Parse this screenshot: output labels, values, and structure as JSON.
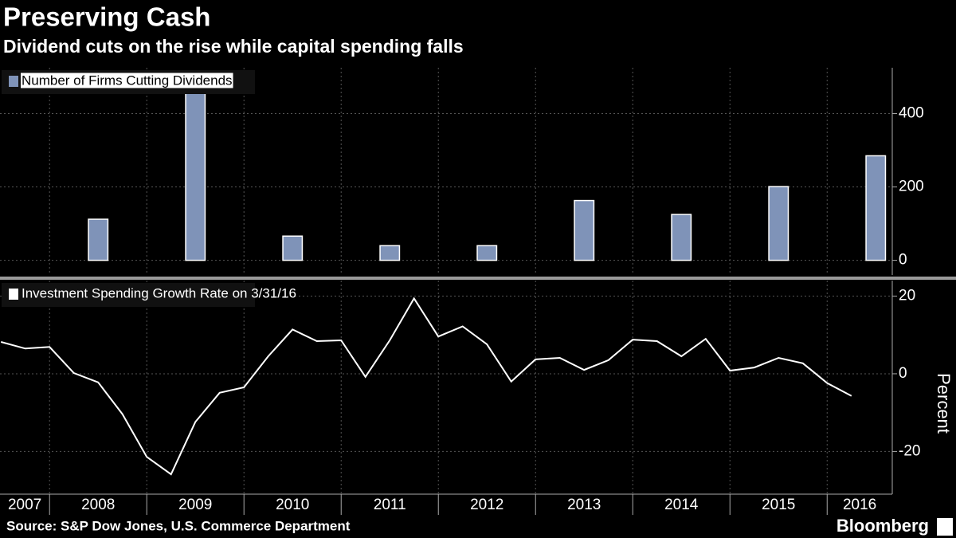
{
  "title": "Preserving Cash",
  "subtitle": "Dividend cuts on the rise while capital spending falls",
  "source": "Source: S&P Dow Jones, U.S. Commerce Department",
  "brand": "Bloomberg",
  "chart_data": [
    {
      "type": "bar",
      "series": [
        {
          "name": "Number of Firms Cutting Dividends",
          "color": "#7f93b8",
          "x": [
            2008.5,
            2009.5,
            2010.5,
            2011.5,
            2012.5,
            2013.5,
            2014.5,
            2015.5,
            2016.5
          ],
          "values": [
            112,
            470,
            66,
            40,
            40,
            163,
            125,
            201,
            285
          ]
        }
      ],
      "xlim": [
        2007.49,
        2016.67
      ],
      "xticks": [
        2008,
        2009,
        2010,
        2011,
        2012,
        2013,
        2014,
        2015,
        2016
      ],
      "ylim": [
        -40,
        525
      ],
      "yticks": [
        0,
        200,
        400
      ],
      "grid": true
    },
    {
      "type": "line",
      "y_label": "Percent",
      "series": [
        {
          "name": "Investment Spending Growth Rate on 3/31/16",
          "color": "#ffffff",
          "x": [
            2007.5,
            2007.75,
            2008,
            2008.25,
            2008.5,
            2008.75,
            2009,
            2009.25,
            2009.5,
            2009.75,
            2010,
            2010.25,
            2010.5,
            2010.75,
            2011,
            2011.25,
            2011.5,
            2011.75,
            2012,
            2012.25,
            2012.5,
            2012.75,
            2013,
            2013.25,
            2013.5,
            2013.75,
            2014,
            2014.25,
            2014.5,
            2014.75,
            2015,
            2015.25,
            2015.5,
            2015.75,
            2016,
            2016.25
          ],
          "values": [
            8.2,
            6.5,
            6.9,
            0.2,
            -2.2,
            -10.4,
            -21.4,
            -25.9,
            -12.4,
            -4.9,
            -3.5,
            4.5,
            11.4,
            8.4,
            8.6,
            -0.8,
            8.6,
            19.4,
            9.6,
            12.2,
            7.6,
            -2.0,
            3.7,
            4.1,
            1.0,
            3.5,
            8.8,
            8.4,
            4.5,
            9.0,
            0.8,
            1.6,
            4.1,
            2.7,
            -2.4,
            -5.7
          ]
        }
      ],
      "xlim": [
        2007.49,
        2016.67
      ],
      "xticks": [
        2008,
        2009,
        2010,
        2011,
        2012,
        2013,
        2014,
        2015,
        2016
      ],
      "year_labels": [
        "2007",
        "2008",
        "2009",
        "2010",
        "2011",
        "2012",
        "2013",
        "2014",
        "2015",
        "2016"
      ],
      "ylim": [
        -31,
        24
      ],
      "yticks": [
        -20,
        0,
        20
      ],
      "grid": true
    }
  ]
}
